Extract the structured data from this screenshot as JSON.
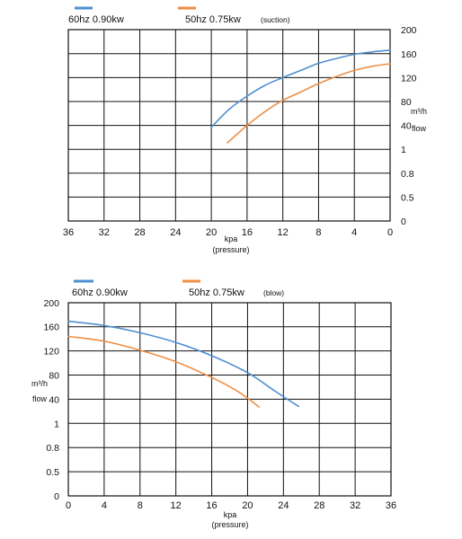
{
  "chart_data": [
    {
      "type": "line",
      "annotation": "(suction)",
      "xlabel": "kpa",
      "xlabel_sub": "(pressure)",
      "ylabel": "m³/h",
      "ylabel_sub": "flow",
      "x_reversed": true,
      "xlim": [
        0,
        36
      ],
      "x_ticks": [
        "36",
        "32",
        "28",
        "24",
        "20",
        "16",
        "12",
        "8",
        "4",
        "0"
      ],
      "y_ticks": [
        "0",
        "0.5",
        "0.8",
        "1",
        "40",
        "80",
        "120",
        "160",
        "200"
      ],
      "grid": true,
      "legend_position": "top-left",
      "series": [
        {
          "name": "60hz 0.90kw",
          "color": "#4f8fd0",
          "points": [
            [
              20.0,
              37
            ],
            [
              18.0,
              67
            ],
            [
              16.0,
              89
            ],
            [
              14.0,
              107
            ],
            [
              12.0,
              120
            ],
            [
              10.0,
              132
            ],
            [
              8.0,
              144
            ],
            [
              6.0,
              152
            ],
            [
              4.0,
              159
            ],
            [
              2.0,
              163
            ],
            [
              0.0,
              166
            ]
          ]
        },
        {
          "name": "50hz  0.75kw",
          "color": "#ef8e44",
          "points": [
            [
              18.2,
              11
            ],
            [
              16.0,
              40
            ],
            [
              14.0,
              63
            ],
            [
              12.0,
              82
            ],
            [
              10.0,
              96
            ],
            [
              8.0,
              110
            ],
            [
              6.0,
              122
            ],
            [
              4.0,
              132
            ],
            [
              2.0,
              139
            ],
            [
              0.0,
              143
            ]
          ]
        }
      ]
    },
    {
      "type": "line",
      "annotation": "(blow)",
      "xlabel": "kpa",
      "xlabel_sub": "(pressure)",
      "ylabel": "m³/h",
      "ylabel_sub": "flow",
      "x_reversed": false,
      "xlim": [
        0,
        36
      ],
      "x_ticks": [
        "0",
        "4",
        "8",
        "12",
        "16",
        "20",
        "24",
        "28",
        "32",
        "36"
      ],
      "y_ticks": [
        "0",
        "0.5",
        "0.8",
        "1",
        "40",
        "80",
        "120",
        "160",
        "200"
      ],
      "grid": true,
      "legend_position": "top-left",
      "series": [
        {
          "name": "60hz 0.90kw",
          "color": "#4f8fd0",
          "points": [
            [
              0,
              169
            ],
            [
              4,
              162
            ],
            [
              8,
              150
            ],
            [
              12,
              134
            ],
            [
              16,
              112
            ],
            [
              20,
              84
            ],
            [
              23,
              54
            ],
            [
              25.7,
              28
            ]
          ]
        },
        {
          "name": "50hz  0.75kw",
          "color": "#ef8e44",
          "points": [
            [
              0,
              144
            ],
            [
              4,
              136
            ],
            [
              8,
              121
            ],
            [
              12,
              102
            ],
            [
              16,
              76
            ],
            [
              19,
              52
            ],
            [
              21.3,
              27
            ]
          ]
        }
      ]
    }
  ]
}
